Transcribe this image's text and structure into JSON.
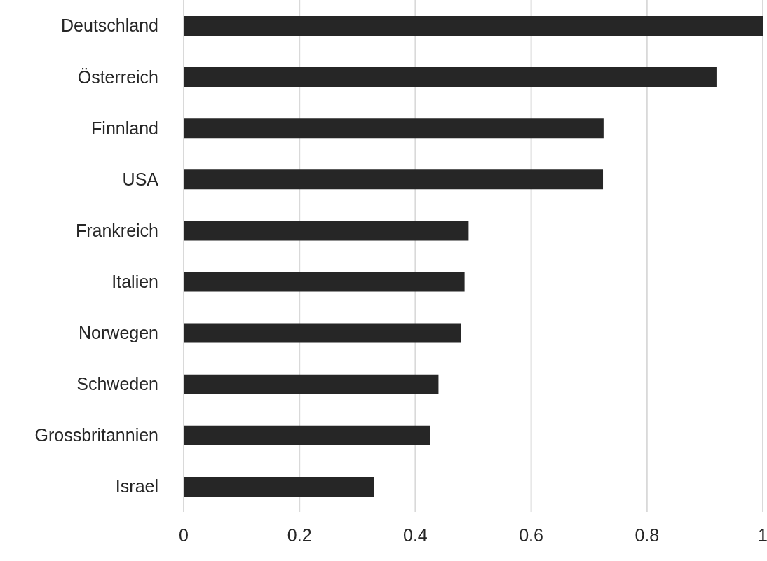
{
  "chart_data": {
    "type": "bar",
    "orientation": "horizontal",
    "categories": [
      "Deutschland",
      "Österreich",
      "Finnland",
      "USA",
      "Frankreich",
      "Italien",
      "Norwegen",
      "Schweden",
      "Grossbritannien",
      "Israel"
    ],
    "values": [
      1,
      0.92,
      0.725,
      0.724,
      0.492,
      0.485,
      0.479,
      0.44,
      0.425,
      0.329
    ],
    "color": "#262626",
    "xlim": [
      0,
      1
    ],
    "xticks": [
      0,
      0.2,
      0.4,
      0.6,
      0.8,
      1
    ],
    "grid": "x"
  }
}
